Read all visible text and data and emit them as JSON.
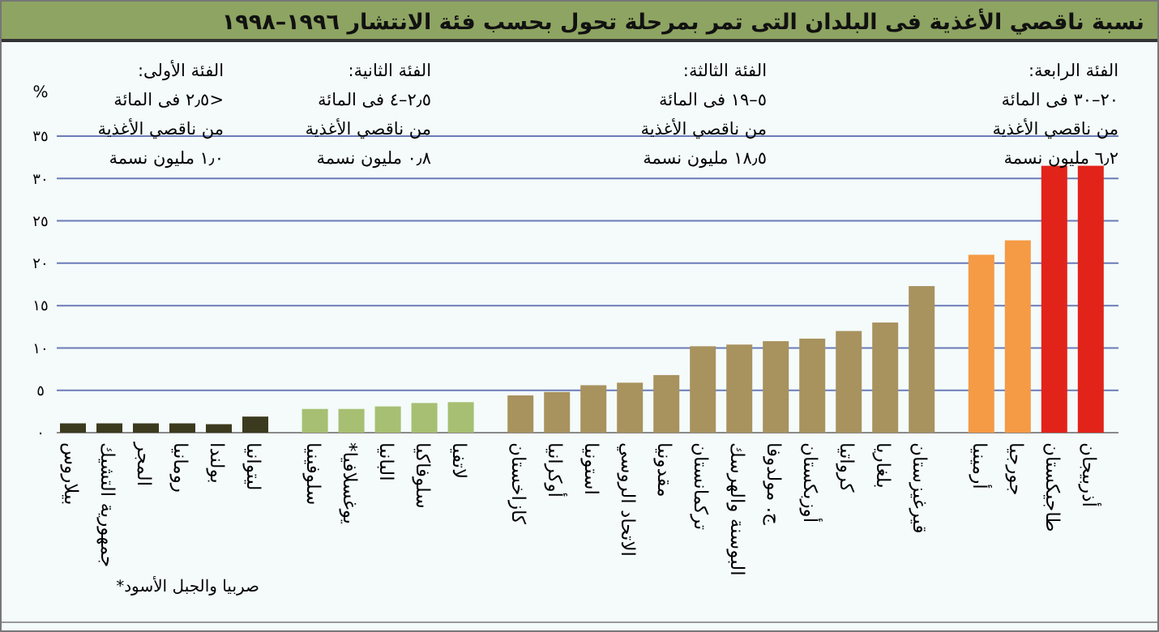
{
  "chart_data": {
    "type": "bar",
    "title": "نسبة ناقصي الأغذية فى البلدان التى تمر بمرحلة تحول بحسب فئة الانتشار ١٩٩٦–١٩٩٨",
    "ylabel": "%",
    "categories": [
      "بيلاروس",
      "جمهورية التشيك",
      "المجر",
      "رومانيا",
      "بولندا",
      "ليتوانيا",
      "سلوفينيا",
      "يوغسلافيا*",
      "البانيا",
      "سلوفاكيا",
      "لاتفيا",
      "كازاخستان",
      "أوكرانيا",
      "استونيا",
      "الاتحاد الروسي",
      "مقدونيا",
      "تركمانستان",
      "البوسنة والهرسك",
      "ج. مولدوفا",
      "أوزبكستان",
      "كرواتيا",
      "بلغاريا",
      "قيرغيزستان",
      "أرمينيا",
      "جورجيا",
      "طاجيكستان",
      "أذربيجان"
    ],
    "values": [
      1.1,
      1.1,
      1.1,
      1.1,
      1,
      1.9,
      2.8,
      2.8,
      3.1,
      3.5,
      3.6,
      4.4,
      4.8,
      5.6,
      5.9,
      6.8,
      10.2,
      10.4,
      10.8,
      11.1,
      12,
      13,
      17.3,
      21,
      22.7,
      31.5,
      31.5
    ],
    "colors": [
      "#3c3a1e",
      "#3c3a1e",
      "#3c3a1e",
      "#3c3a1e",
      "#3c3a1e",
      "#3c3a1e",
      "#a6bf72",
      "#a6bf72",
      "#a6bf72",
      "#a6bf72",
      "#a6bf72",
      "#a8925e",
      "#a8925e",
      "#a8925e",
      "#a8925e",
      "#a8925e",
      "#a8925e",
      "#a8925e",
      "#a8925e",
      "#a8925e",
      "#a8925e",
      "#a8925e",
      "#a8925e",
      "#f59a45",
      "#f59a45",
      "#e2231a",
      "#e2231a"
    ],
    "ylim": [
      0,
      35
    ],
    "yticks": [
      {
        "value": 0,
        "label": "٠"
      },
      {
        "value": 5,
        "label": "٥"
      },
      {
        "value": 10,
        "label": "١٠"
      },
      {
        "value": 15,
        "label": "١٥"
      },
      {
        "value": 20,
        "label": "٢٠"
      },
      {
        "value": 25,
        "label": "٢٥"
      },
      {
        "value": 30,
        "label": "٣٠"
      },
      {
        "value": 35,
        "label": "٣٥"
      }
    ],
    "grid": "y",
    "annotations": [
      "الفئة الأولى:\n<٢٫٥ فى المائة\nمن ناقصي الأغذية\n١٫٠ مليون نسمة",
      "الفئة الثانية:\n٢٫٥–٤ فى المائة\nمن ناقصي الأغذية\n٠٫٨ مليون نسمة",
      "الفئة الثالثة:\n٥–١٩ فى المائة\nمن ناقصي الأغذية\n١٨٫٥ مليون نسمة",
      "الفئة الرابعة:\n٢٠–٣٠ فى المائة\nمن ناقصي الأغذية\n٦٫٢ مليون نسمة",
      "صربيا والجبل الأسود*"
    ]
  }
}
